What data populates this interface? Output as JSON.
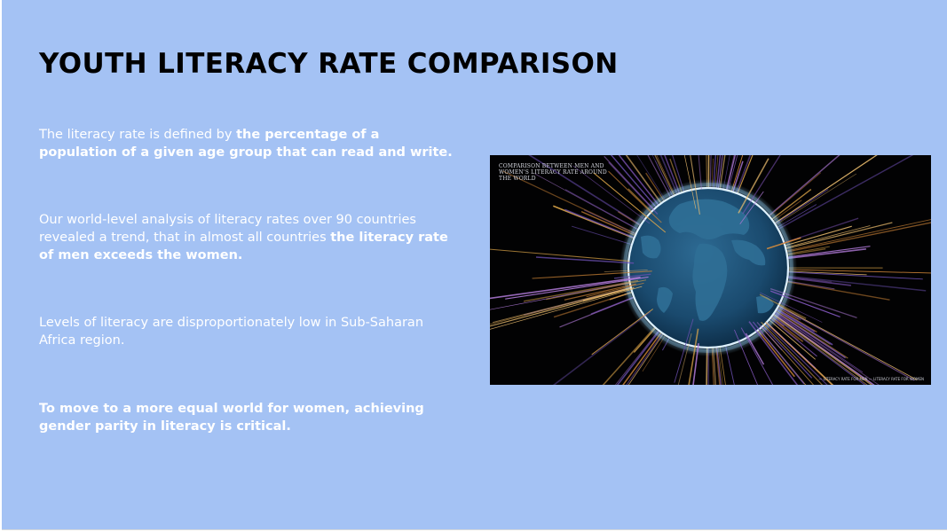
{
  "slide": {
    "title": "YOUTH LITERACY RATE COMPARISON",
    "paragraphs": [
      {
        "segments": [
          {
            "text": "The literacy rate is defined by ",
            "bold": false
          },
          {
            "text": "the percentage of a population of a given age group that can read and write.",
            "bold": true
          }
        ]
      },
      {
        "segments": [
          {
            "text": "Our world-level analysis of literacy rates over 90 countries revealed a trend, that in almost all countries ",
            "bold": false
          },
          {
            "text": "the literacy rate of men exceeds the women.",
            "bold": true
          }
        ]
      },
      {
        "segments": [
          {
            "text": "Levels of literacy are disproportionately low in Sub-Saharan Africa region.",
            "bold": false
          }
        ]
      },
      {
        "segments": [
          {
            "text": "To move to a more equal world for women, achieving gender parity in literacy is critical.",
            "bold": true
          }
        ]
      }
    ]
  },
  "figure": {
    "title": "COMPARISON BETWEEN MEN AND WOMEN'S LITERACY RATE AROUND THE WORLD",
    "legend": "— LITERACY RATE FOR MEN   — LITERACY RATE FOR WOMEN",
    "colors": {
      "background": "#020203",
      "men_lines": "#e0a84a",
      "women_lines": "#8a5cc8",
      "globe_ocean": "#1d4f74",
      "globe_land": "#2f6f96",
      "globe_rim": "#dff2ff"
    }
  }
}
